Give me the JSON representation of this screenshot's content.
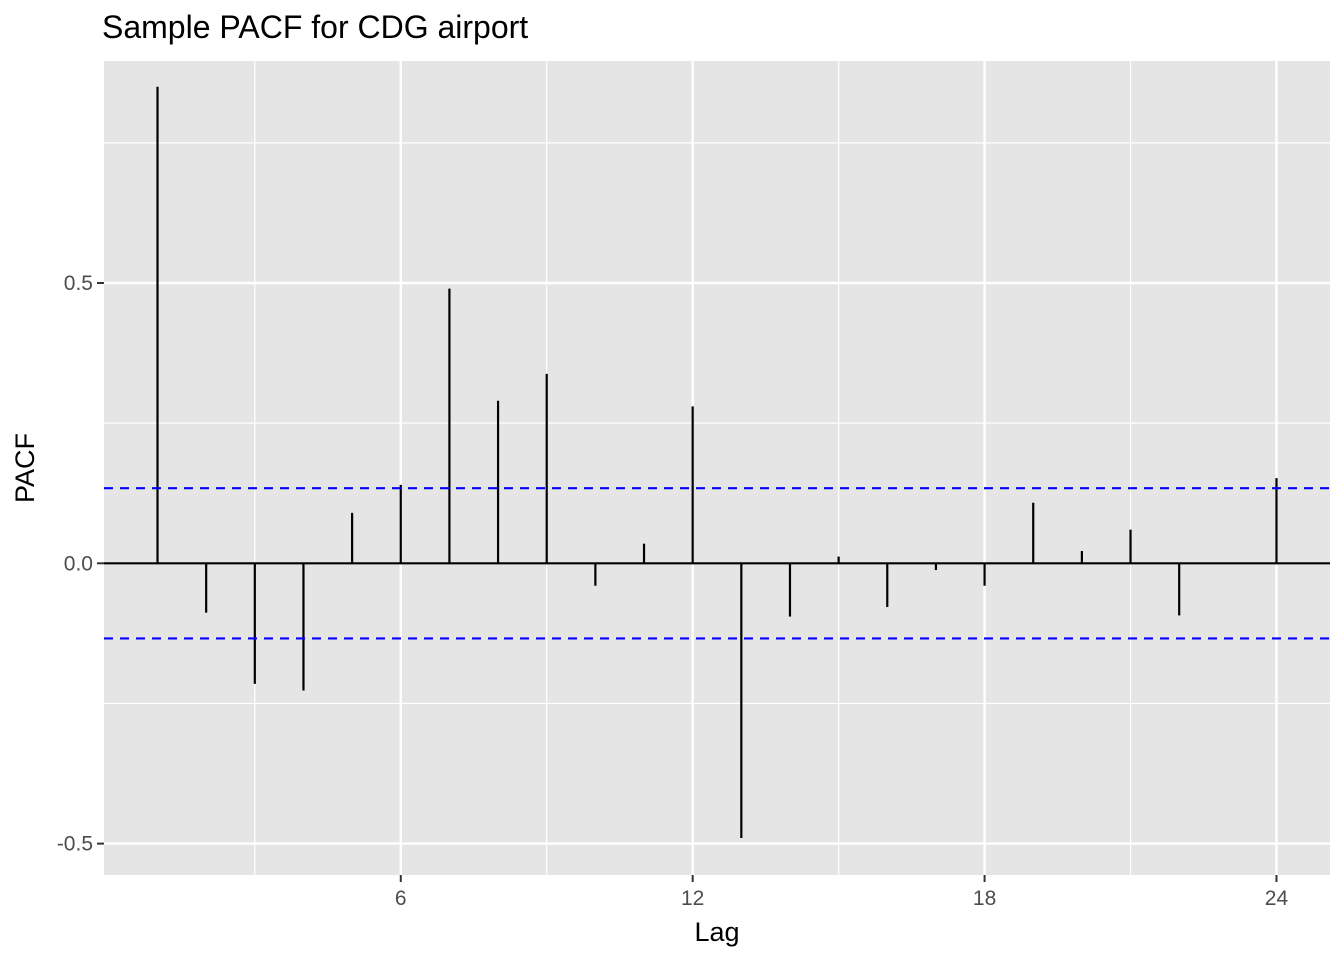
{
  "chart_data": {
    "type": "bar",
    "title": "Sample PACF for CDG airport",
    "xlabel": "Lag",
    "ylabel": "PACF",
    "x": [
      1,
      2,
      3,
      4,
      5,
      6,
      7,
      8,
      9,
      10,
      11,
      12,
      13,
      14,
      15,
      16,
      17,
      18,
      19,
      20,
      21,
      22,
      24
    ],
    "values": [
      0.85,
      -0.088,
      -0.215,
      -0.227,
      0.09,
      0.14,
      0.49,
      0.29,
      0.338,
      -0.04,
      0.035,
      0.28,
      -0.49,
      -0.095,
      0.012,
      -0.078,
      -0.012,
      -0.04,
      0.108,
      0.022,
      0.06,
      -0.093,
      0.152
    ],
    "confidence_bound": 0.134,
    "x_ticks": [
      6,
      12,
      18,
      24
    ],
    "x_tick_labels": [
      "6",
      "12",
      "18",
      "24"
    ],
    "y_ticks": [
      -0.5,
      0,
      0.5
    ],
    "y_tick_labels": [
      "-0.5",
      "0.0",
      "0.5"
    ],
    "xlim": [
      -0.1,
      25.1
    ],
    "ylim": [
      -0.556,
      0.896
    ],
    "grid": true,
    "colors": {
      "panel": "#e5e5e5",
      "grid": "#ffffff",
      "bars": "#000000",
      "bounds": "#0000ff"
    }
  }
}
